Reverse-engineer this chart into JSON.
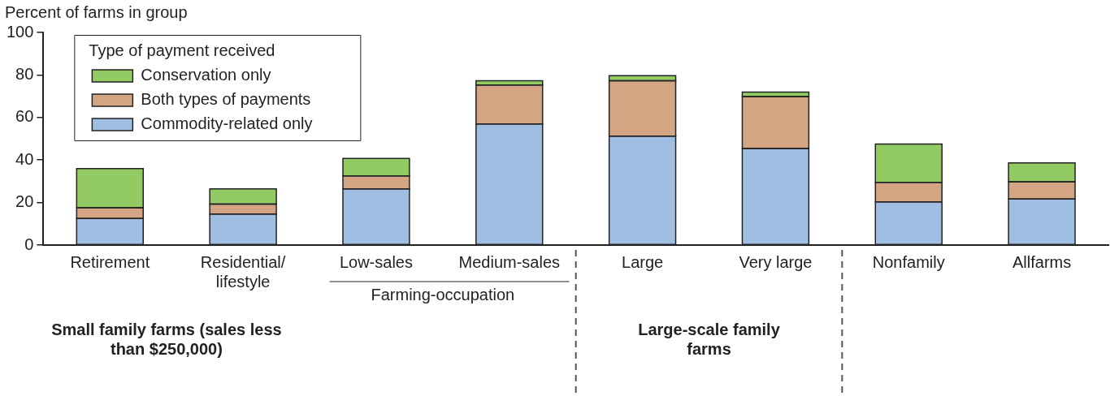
{
  "chart_data": {
    "type": "bar",
    "stacked": true,
    "ylabel": "Percent of farms in group",
    "legend_title": "Type of payment received",
    "legend": "top left",
    "grid": false,
    "categories": [
      "Retirement",
      "Residential/lifestyle",
      "Low-sales",
      "Medium-sales",
      "Large",
      "Very large",
      "Nonfamily",
      "Allfarms"
    ],
    "series": [
      {
        "name": "Commodity-related only",
        "color": "#a0bee2",
        "values": [
          12.5,
          14.6,
          26.4,
          57,
          51.2,
          45.4,
          20.3,
          21.7
        ]
      },
      {
        "name": "Both types of payments",
        "color": "#d4a582",
        "values": [
          5.1,
          4.7,
          6.1,
          18.3,
          26.1,
          24.4,
          9.2,
          8.1
        ]
      },
      {
        "name": "Conservation only",
        "color": "#92cb64",
        "values": [
          18.4,
          7.1,
          8.2,
          2,
          2.4,
          2.1,
          18,
          8.8
        ]
      }
    ],
    "ylim": [
      0,
      100
    ],
    "yticks": [
      0,
      20,
      40,
      60,
      80,
      100
    ],
    "annotations": [
      "Farming-occupation",
      "Small family farms (sales less than $250,000)",
      "Large-scale family farms"
    ]
  }
}
